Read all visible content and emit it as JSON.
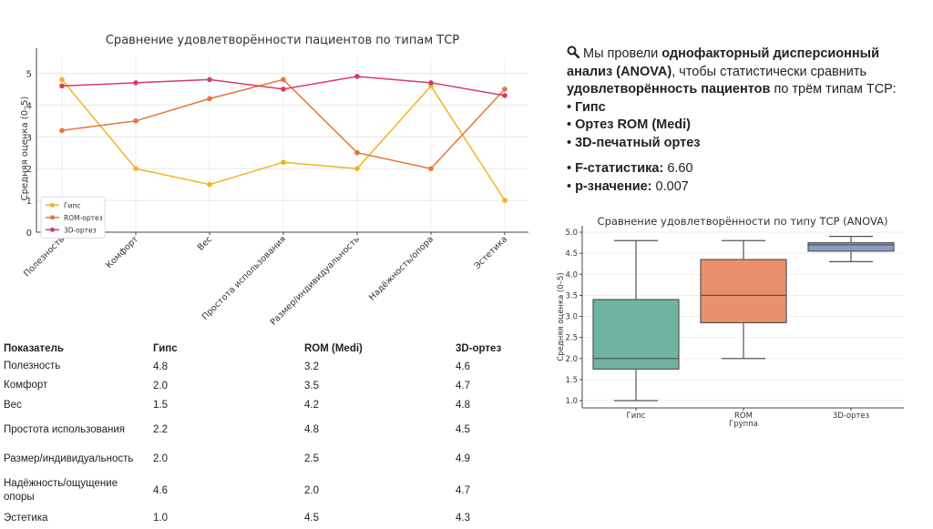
{
  "chart_data": [
    {
      "type": "line",
      "title": "Сравнение удовлетворённости пациентов по типам ТСР",
      "xlabel": "",
      "ylabel": "Средняя оценка (0–5)",
      "categories": [
        "Полезность",
        "Комфорт",
        "Вес",
        "Простота использования",
        "Размер/индивидуальность",
        "Надёжность/опора",
        "Эстетика"
      ],
      "ylim": [
        0,
        5.5
      ],
      "yticks": [
        0,
        1,
        2,
        3,
        4,
        5
      ],
      "grid": true,
      "legend": "bottom-left",
      "series": [
        {
          "name": "Гипс",
          "color": "#f2b420",
          "values": [
            4.8,
            2.0,
            1.5,
            2.2,
            2.0,
            4.6,
            1.0
          ]
        },
        {
          "name": "ROM-ортез",
          "color": "#e8743b",
          "values": [
            3.2,
            3.5,
            4.2,
            4.8,
            2.5,
            2.0,
            4.5
          ]
        },
        {
          "name": "3D-ортез",
          "color": "#d93a63",
          "values": [
            4.6,
            4.7,
            4.8,
            4.5,
            4.9,
            4.7,
            4.3
          ]
        }
      ]
    },
    {
      "type": "box",
      "title": "Сравнение удовлетворённости по типу ТСР (ANOVA)",
      "xlabel": "Группа",
      "ylabel": "Средняя оценка (0–5)",
      "categories": [
        "Гипс",
        "ROM",
        "3D-ортез"
      ],
      "ylim": [
        0.8,
        5.05
      ],
      "yticks": [
        "1.0",
        "1.5",
        "2.0",
        "2.5",
        "3.0",
        "3.5",
        "4.0",
        "4.5",
        "5.0"
      ],
      "grid": true,
      "boxes": [
        {
          "name": "Гипс",
          "color": "#6fb4a0",
          "min": 1.0,
          "q1": 1.75,
          "median": 2.0,
          "q3": 3.4,
          "max": 4.8
        },
        {
          "name": "ROM",
          "color": "#e8916c",
          "min": 2.0,
          "q1": 2.85,
          "median": 3.5,
          "q3": 4.35,
          "max": 4.8
        },
        {
          "name": "3D-ортез",
          "color": "#8a9bc6",
          "min": 4.3,
          "q1": 4.55,
          "median": 4.7,
          "q3": 4.75,
          "max": 4.9
        }
      ]
    }
  ],
  "info": {
    "icon": "magnifier-icon",
    "intro_1": "Мы провели ",
    "intro_bold_1": "однофакторный дисперсионный анализ (ANOVA)",
    "intro_2": ", чтобы статистически сравнить ",
    "intro_bold_2": "удовлетворённость пациентов",
    "intro_3": " по трём типам ТСР:",
    "bullets": [
      "Гипс",
      "Ортез ROM (Medi)",
      "3D-печатный ортез"
    ],
    "stats": [
      {
        "label": "F-статистика:",
        "value": "6.60"
      },
      {
        "label": "p-значение:",
        "value": "0.007"
      }
    ]
  },
  "table": {
    "headers": [
      "Показатель",
      "Гипс",
      "ROM (Medi)",
      "3D-ортез"
    ],
    "rows": [
      [
        "Полезность",
        "4.8",
        "3.2",
        "4.6"
      ],
      [
        "Комфорт",
        "2.0",
        "3.5",
        "4.7"
      ],
      [
        "Вес",
        "1.5",
        "4.2",
        "4.8"
      ],
      [
        "Простота использования",
        "2.2",
        "4.8",
        "4.5"
      ],
      [
        "Размер/индивидуальность",
        "2.0",
        "2.5",
        "4.9"
      ],
      [
        "Надёжность/ощущение опоры",
        "4.6",
        "2.0",
        "4.7"
      ],
      [
        "Эстетика",
        "1.0",
        "4.5",
        "4.3"
      ]
    ]
  }
}
